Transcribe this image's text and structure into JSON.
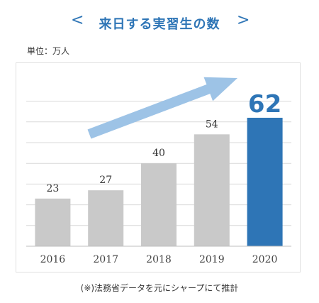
{
  "header": {
    "prev_arrow": "<",
    "title": "来日する実習生の数",
    "next_arrow": ">"
  },
  "unit_label": "単位：万人",
  "footnote": "(※)法務省データを元にシャープにて推計",
  "colors": {
    "accent": "#2e75b6",
    "bar_default": "#c9c9c9",
    "bar_highlight": "#2e75b6",
    "trend_arrow": "#9dc3e6",
    "grid": "#d9d9d9"
  },
  "chart_data": {
    "type": "bar",
    "categories": [
      "2016",
      "2017",
      "2018",
      "2019",
      "2020"
    ],
    "values": [
      23,
      27,
      40,
      54,
      62
    ],
    "value_labels": [
      "23",
      "27",
      "40",
      "54",
      "62"
    ],
    "highlight_index": 4,
    "ylim": [
      0,
      70
    ],
    "grid": true,
    "trend_arrow": true,
    "title": "来日する実習生の数",
    "xlabel": "",
    "ylabel": "単位：万人"
  }
}
